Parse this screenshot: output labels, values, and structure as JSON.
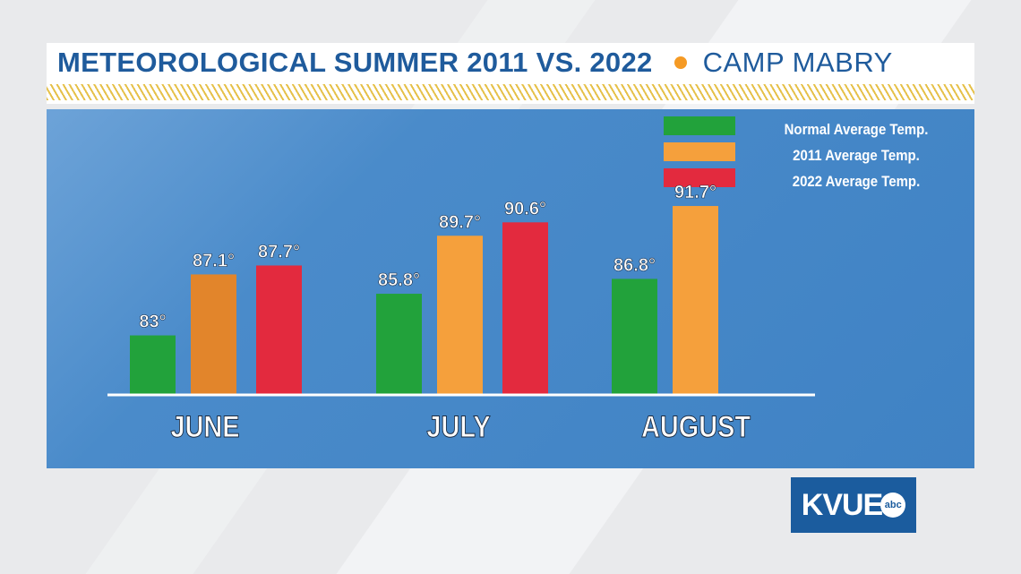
{
  "header": {
    "title": "METEOROLOGICAL SUMMER 2011 VS. 2022",
    "location": "CAMP MABRY",
    "dot_color": "#f59a24"
  },
  "colors": {
    "normal": "#22a23b",
    "y2011": "#f5a03c",
    "y2011_june": "#e2852b",
    "y2022": "#e32a3e"
  },
  "logo": {
    "text": "KVUE",
    "badge": "abc"
  },
  "chart_data": {
    "type": "bar",
    "categories": [
      "JUNE",
      "JULY",
      "AUGUST"
    ],
    "series": [
      {
        "name": "Normal Average Temp.",
        "values": [
          83,
          85.8,
          86.8
        ],
        "labels": [
          "83°",
          "85.8°",
          "86.8°"
        ],
        "color": "#22a23b"
      },
      {
        "name": "2011 Average Temp.",
        "values": [
          87.1,
          89.7,
          91.7
        ],
        "labels": [
          "87.1°",
          "89.7°",
          "91.7°"
        ],
        "color": "#f5a03c"
      },
      {
        "name": "2022 Average Temp.",
        "values": [
          87.7,
          90.6,
          null
        ],
        "labels": [
          "87.7°",
          "90.6°",
          ""
        ],
        "color": "#e32a3e"
      }
    ],
    "ylim": [
      79,
      97
    ],
    "grid": false,
    "legend_position": "top-right"
  }
}
